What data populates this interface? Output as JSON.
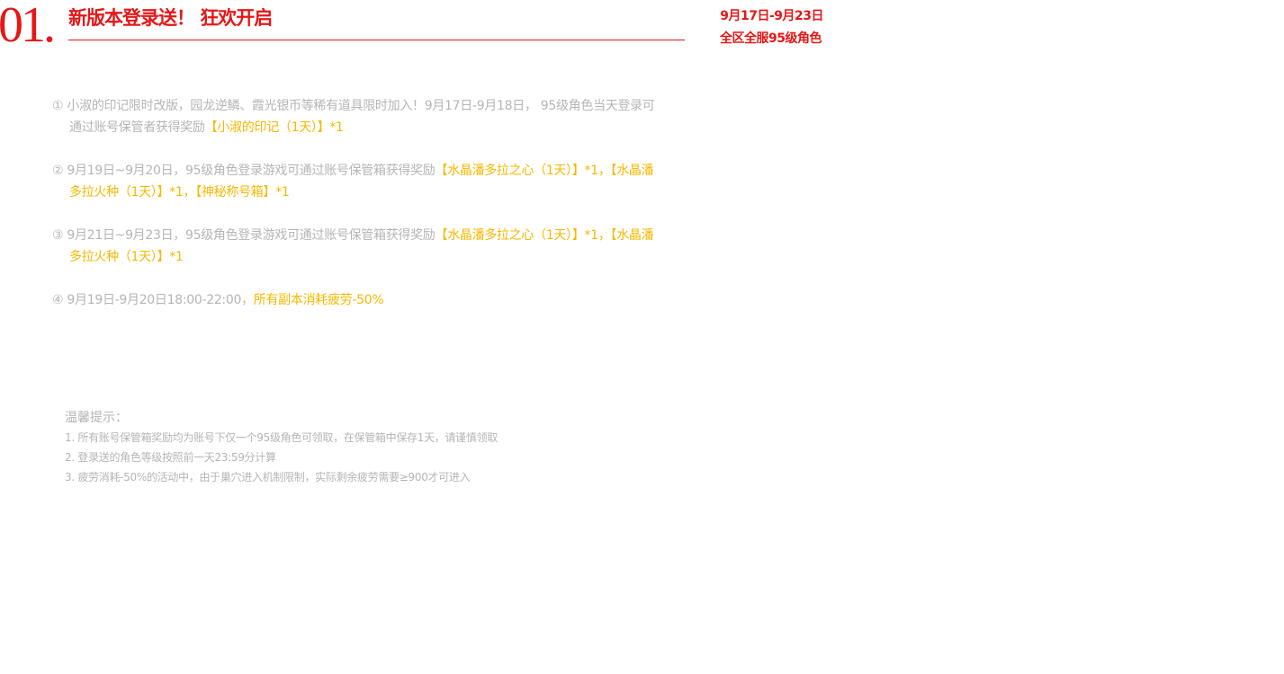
{
  "header": {
    "number": "01.",
    "title": "新版本登录送！ 狂欢开启",
    "date": "9月17日-9月23日",
    "scope": "全区全服95级角色",
    "accent": "#e51717",
    "highlight": "#f5b800"
  },
  "items": [
    {
      "marker": "①",
      "text": "小淑的印记限时改版，园龙逆鳞、霞光银币等稀有道具限时加入！9月17日-9月18日， 95级角色当天登录可通过账号保管者获得奖励",
      "reward": "【小淑的印记（1天）】*1"
    },
    {
      "marker": "②",
      "text": "9月19日~9月20日，95级角色登录游戏可通过账号保管箱获得奖励",
      "reward": "【水晶潘多拉之心（1天）】*1，【水晶潘多拉火种（1天）】*1，【神秘称号箱】*1"
    },
    {
      "marker": "③",
      "text": "9月21日~9月23日，95级角色登录游戏可通过账号保管箱获得奖励",
      "reward": "【水晶潘多拉之心（1天）】*1，【水晶潘多拉火种（1天）】*1"
    },
    {
      "marker": "④",
      "text": "9月19日-9月20日18:00-22:00，",
      "reward": "所有副本消耗疲劳-50%"
    }
  ],
  "notes": {
    "heading": "温馨提示：",
    "lines": [
      "1. 所有账号保管箱奖励均为账号下仅一个95级角色可领取，在保管箱中保存1天，请谨慎领取",
      "2. 登录送的角色等级按照前一天23:59分计算",
      "3. 疲劳消耗-50%的活动中，由于巢穴进入机制限制，实际剩余疲劳需要≥900才可进入"
    ]
  }
}
